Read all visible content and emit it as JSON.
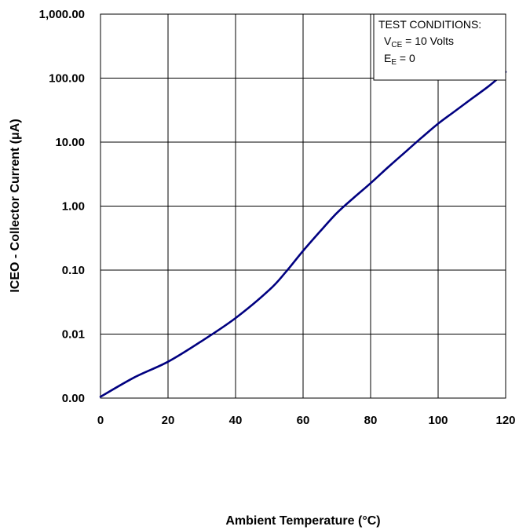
{
  "chart_data": {
    "type": "line",
    "title": "",
    "xlabel": "Ambient Temperature (°C)",
    "ylabel": "ICEO - Collector Current (μA)",
    "xlim": [
      0,
      120
    ],
    "ylim": [
      0.001,
      1000
    ],
    "yscale": "log",
    "grid": true,
    "x_ticks": [
      0,
      20,
      40,
      60,
      80,
      100,
      120
    ],
    "x_tick_labels": [
      "0",
      "20",
      "40",
      "60",
      "80",
      "100",
      "120"
    ],
    "y_ticks": [
      0.001,
      0.01,
      0.1,
      1,
      10,
      100,
      1000
    ],
    "y_tick_labels": [
      "0.00",
      "0.01",
      "0.10",
      "1.00",
      "10.00",
      "100.00",
      "1,000.00"
    ],
    "line_color": "#000080",
    "series": [
      {
        "name": "",
        "x": [
          0,
          10,
          20,
          30,
          40,
          50,
          55,
          60,
          65,
          70,
          75,
          80,
          85,
          90,
          95,
          100,
          105,
          110,
          115,
          120
        ],
        "y": [
          0.00105,
          0.0021,
          0.0037,
          0.0078,
          0.0178,
          0.049,
          0.095,
          0.2,
          0.4,
          0.78,
          1.35,
          2.28,
          3.98,
          6.8,
          11.6,
          19.4,
          30.5,
          48,
          75,
          125
        ]
      }
    ]
  },
  "annotation": {
    "heading": "TEST CONDITIONS:",
    "line1": {
      "symbol": "V",
      "subscript": "CE",
      "rest": " = 10 Volts"
    },
    "line2": {
      "symbol": "E",
      "subscript": "E",
      "rest": " = 0"
    }
  }
}
